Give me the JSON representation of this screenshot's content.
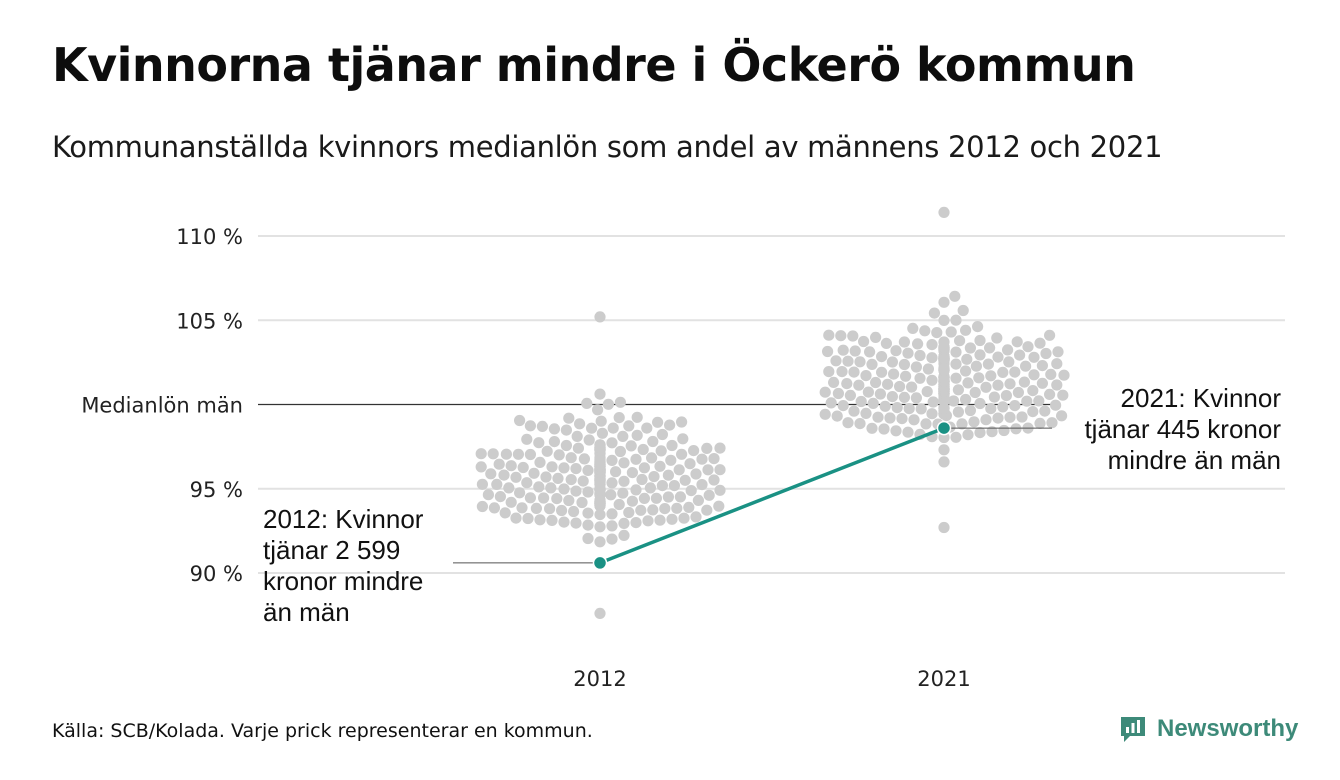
{
  "title": "Kvinnorna tjänar mindre i Öckerö kommun",
  "subtitle": "Kommunanställda kvinnors medianlön som andel av männens 2012 och 2021",
  "source": "Källa: SCB/Kolada. Varje prick representerar en kommun.",
  "brand": {
    "name": "Newsworthy",
    "color": "#3d8a79"
  },
  "chart_data": {
    "type": "scatter",
    "subtype": "beeswarm",
    "categories": [
      "2012",
      "2021"
    ],
    "ylim": [
      86.5,
      112
    ],
    "y_ticks": [
      {
        "value": 90,
        "label": "90 %"
      },
      {
        "value": 95,
        "label": "95 %"
      },
      {
        "value": 100,
        "label": "Medianlön män"
      },
      {
        "value": 105,
        "label": "105 %"
      },
      {
        "value": 110,
        "label": "110 %"
      }
    ],
    "grid": true,
    "reference_line": {
      "value": 100,
      "label": "Medianlön män"
    },
    "colors": {
      "dots": "#cccccc",
      "highlight": "#1a9184",
      "grid": "#e2e2e2",
      "reference": "#333333"
    },
    "distributions": [
      {
        "category": "2012",
        "median": 95.8,
        "spread": 2.3,
        "min": 87.6,
        "max": 105.2,
        "n": 290
      },
      {
        "category": "2021",
        "median": 101.4,
        "spread": 2.4,
        "min": 92.7,
        "max": 111.4,
        "n": 290
      }
    ],
    "highlight": {
      "name": "Öckerö",
      "points": [
        {
          "x": "2012",
          "y": 90.6
        },
        {
          "x": "2021",
          "y": 98.6
        }
      ]
    },
    "annotations": [
      {
        "x": "2012",
        "y": 90.6,
        "lines": [
          "2012: Kvinnor",
          "tjänar 2 599",
          "kronor mindre",
          "än män"
        ]
      },
      {
        "x": "2021",
        "y": 98.6,
        "lines": [
          "2021: Kvinnor",
          "tjänar 445 kronor",
          "mindre än män"
        ]
      }
    ]
  }
}
